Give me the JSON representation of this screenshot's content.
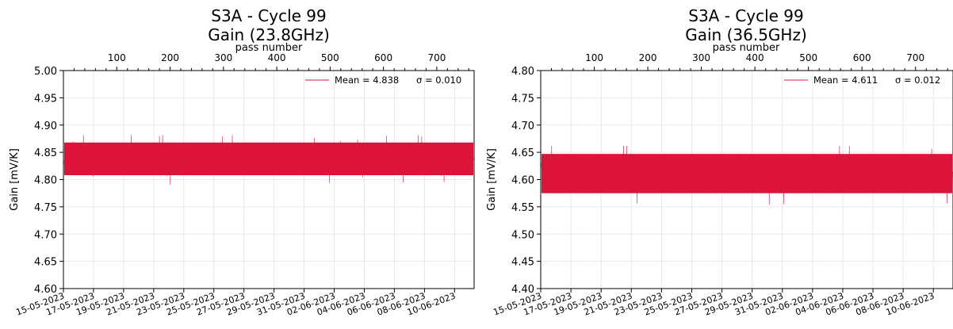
{
  "chart_data": [
    {
      "type": "line",
      "title": "S3A - Cycle 99",
      "subtitle": "Gain (23.8GHz)",
      "xlabel": "",
      "xlabel_top": "pass number",
      "ylabel": "Gain [mV/K]",
      "ylim": [
        4.6,
        5.0
      ],
      "yticks": [
        "4.60",
        "4.65",
        "4.70",
        "4.75",
        "4.80",
        "4.85",
        "4.90",
        "4.95",
        "5.00"
      ],
      "xlim_days": [
        0,
        27.3
      ],
      "xticks": [
        "15-05-2023",
        "17-05-2023",
        "19-05-2023",
        "21-05-2023",
        "23-05-2023",
        "25-05-2023",
        "27-05-2023",
        "29-05-2023",
        "31-05-2023",
        "02-06-2023",
        "04-06-2023",
        "06-06-2023",
        "08-06-2023",
        "10-06-2023"
      ],
      "top_xlim": [
        0,
        770
      ],
      "top_xticks": [
        "100",
        "200",
        "300",
        "400",
        "500",
        "600",
        "700"
      ],
      "legend": {
        "label": "Mean = 4.838",
        "sigma_label": "σ = 0.010",
        "placement": "upper-right"
      },
      "series": [
        {
          "mean": 4.838,
          "sigma": 0.01,
          "band_low": 4.808,
          "band_high": 4.868,
          "min": 4.79,
          "max": 4.882
        }
      ],
      "grid": true,
      "color": "#dc143c"
    },
    {
      "type": "line",
      "title": "S3A - Cycle 99",
      "subtitle": "Gain (36.5GHz)",
      "xlabel": "",
      "xlabel_top": "pass number",
      "ylabel": "Gain [mV/K]",
      "ylim": [
        4.4,
        4.8
      ],
      "yticks": [
        "4.40",
        "4.45",
        "4.50",
        "4.55",
        "4.60",
        "4.65",
        "4.70",
        "4.75",
        "4.80"
      ],
      "xlim_days": [
        0,
        27.3
      ],
      "xticks": [
        "15-05-2023",
        "17-05-2023",
        "19-05-2023",
        "21-05-2023",
        "23-05-2023",
        "25-05-2023",
        "27-05-2023",
        "29-05-2023",
        "31-05-2023",
        "02-06-2023",
        "04-06-2023",
        "06-06-2023",
        "08-06-2023",
        "10-06-2023"
      ],
      "top_xlim": [
        0,
        770
      ],
      "top_xticks": [
        "100",
        "200",
        "300",
        "400",
        "500",
        "600",
        "700"
      ],
      "legend": {
        "label": "Mean = 4.611",
        "sigma_label": "σ = 0.012",
        "placement": "upper-right"
      },
      "series": [
        {
          "mean": 4.611,
          "sigma": 0.012,
          "band_low": 4.575,
          "band_high": 4.647,
          "min": 4.552,
          "max": 4.662
        }
      ],
      "grid": true,
      "color": "#dc143c"
    }
  ]
}
